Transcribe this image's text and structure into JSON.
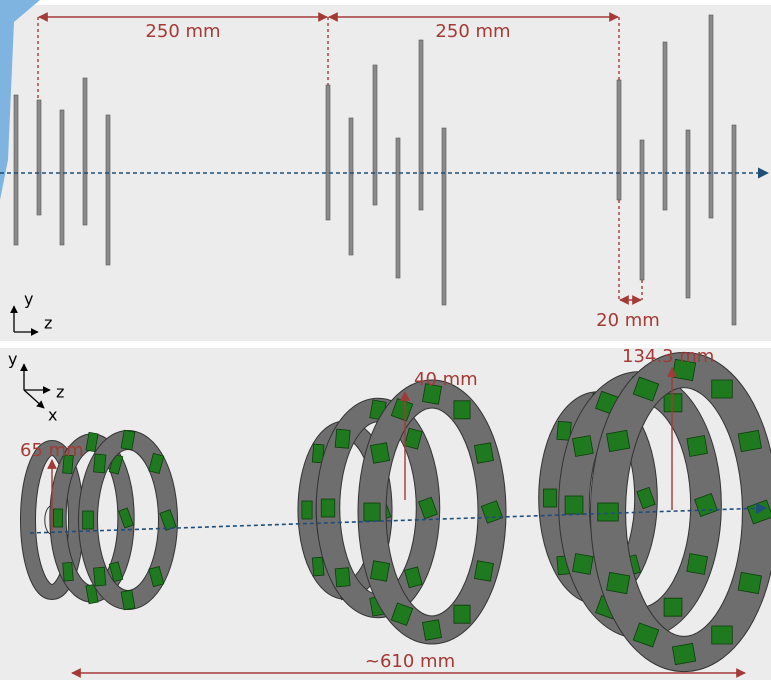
{
  "top_panel": {
    "dimensions": [
      "250 mm",
      "250 mm",
      "20 mm"
    ],
    "axes": {
      "vertical": "y",
      "horizontal": "z"
    }
  },
  "bottom_panel": {
    "dimensions": [
      "65 mm",
      "40 mm",
      "134.3 mm",
      "~610 mm"
    ],
    "axes": {
      "vertical": "y",
      "horizontal": "z",
      "depth": "x"
    }
  }
}
